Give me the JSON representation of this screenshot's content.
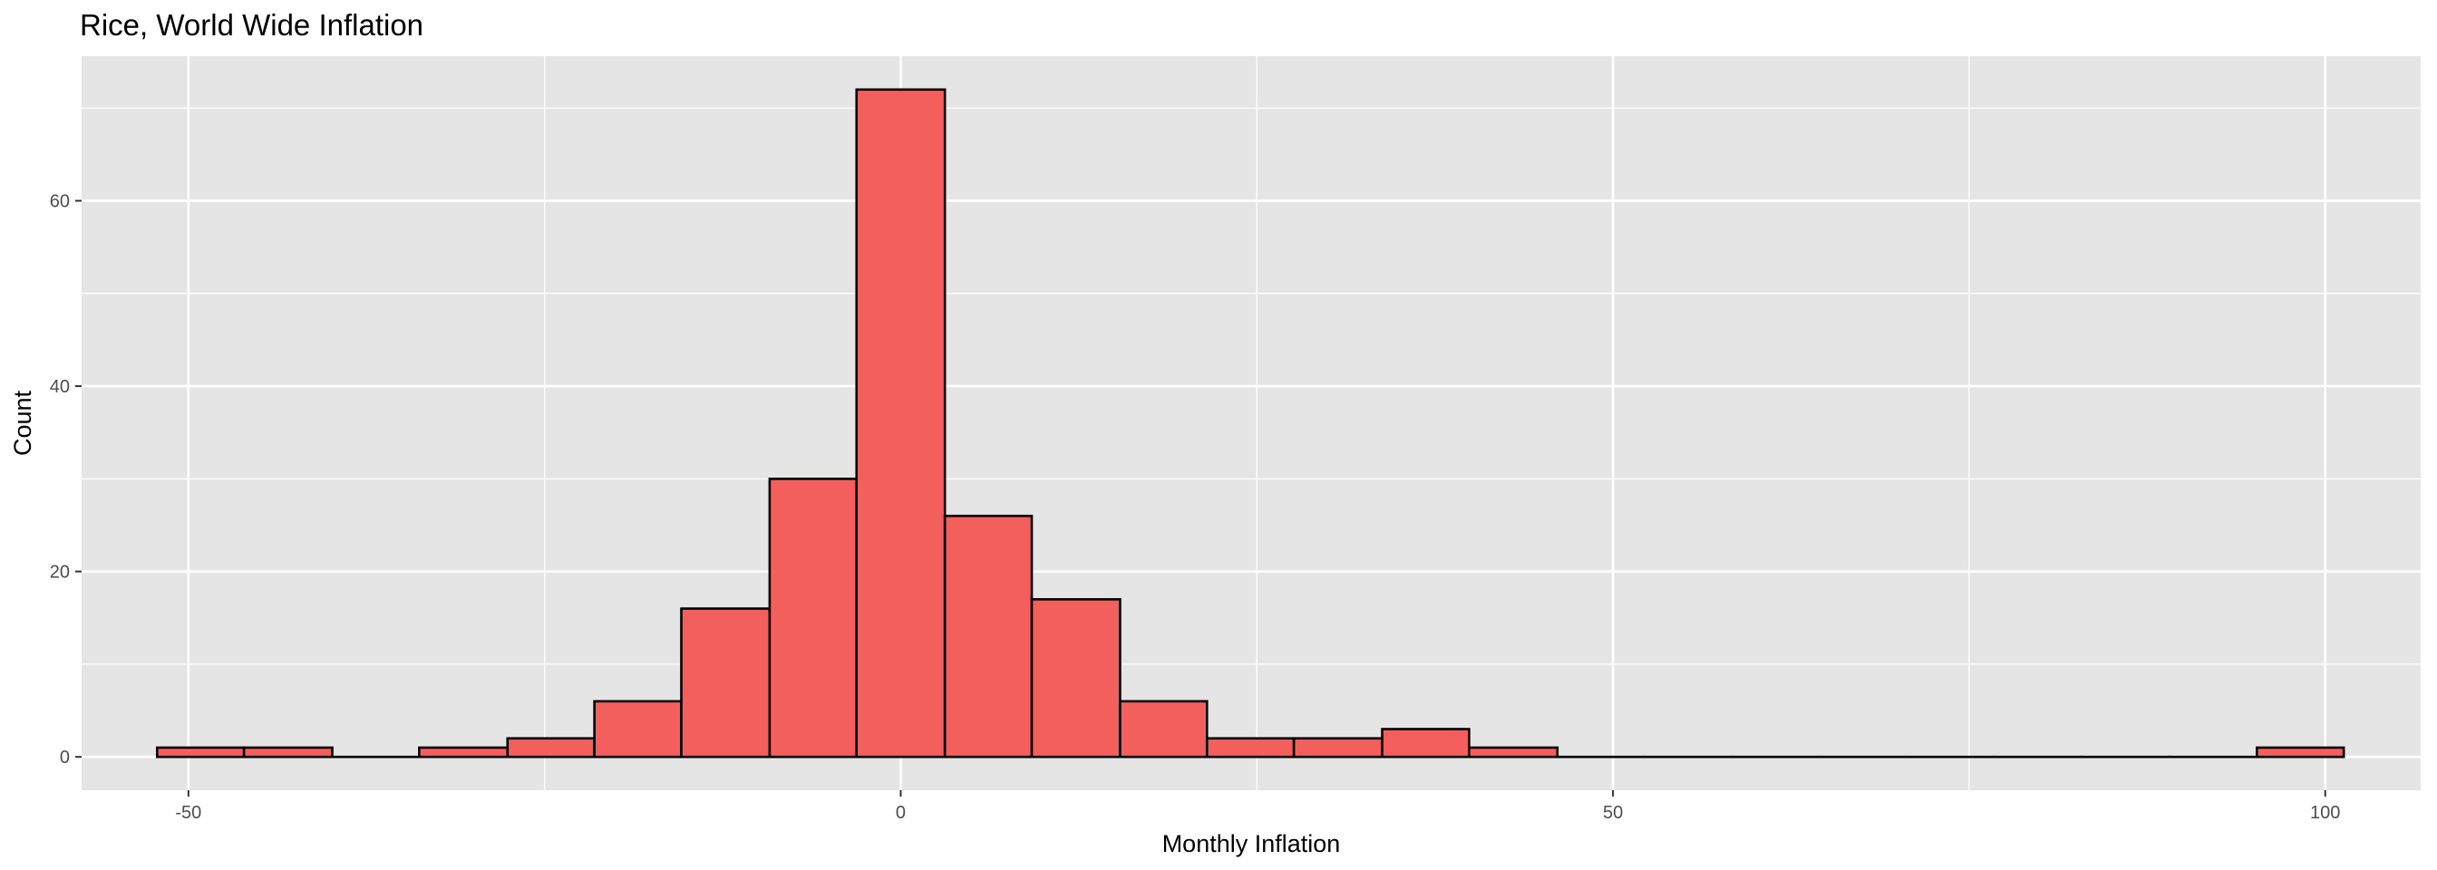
{
  "chart_data": {
    "type": "bar",
    "title": "Rice, World Wide Inflation",
    "xlabel": "Monthly Inflation",
    "ylabel": "Count",
    "bin_width": 6.14,
    "bins": [
      {
        "x0": -52.2,
        "x1": -46.1,
        "count": 1
      },
      {
        "x0": -46.1,
        "x1": -39.9,
        "count": 1
      },
      {
        "x0": -39.9,
        "x1": -33.8,
        "count": 0
      },
      {
        "x0": -33.8,
        "x1": -27.6,
        "count": 1
      },
      {
        "x0": -27.6,
        "x1": -21.5,
        "count": 2
      },
      {
        "x0": -21.5,
        "x1": -15.4,
        "count": 6
      },
      {
        "x0": -15.4,
        "x1": -9.2,
        "count": 16
      },
      {
        "x0": -9.2,
        "x1": -3.1,
        "count": 30
      },
      {
        "x0": -3.1,
        "x1": 3.1,
        "count": 72
      },
      {
        "x0": 3.1,
        "x1": 9.2,
        "count": 26
      },
      {
        "x0": 9.2,
        "x1": 15.4,
        "count": 17
      },
      {
        "x0": 15.4,
        "x1": 21.5,
        "count": 6
      },
      {
        "x0": 21.5,
        "x1": 27.6,
        "count": 2
      },
      {
        "x0": 27.6,
        "x1": 33.8,
        "count": 2
      },
      {
        "x0": 33.8,
        "x1": 39.9,
        "count": 3
      },
      {
        "x0": 39.9,
        "x1": 46.1,
        "count": 1
      },
      {
        "x0": 46.1,
        "x1": 52.2,
        "count": 0
      },
      {
        "x0": 52.2,
        "x1": 58.4,
        "count": 0
      },
      {
        "x0": 58.4,
        "x1": 64.5,
        "count": 0
      },
      {
        "x0": 64.5,
        "x1": 70.6,
        "count": 0
      },
      {
        "x0": 70.6,
        "x1": 76.8,
        "count": 0
      },
      {
        "x0": 76.8,
        "x1": 82.9,
        "count": 0
      },
      {
        "x0": 82.9,
        "x1": 89.1,
        "count": 0
      },
      {
        "x0": 89.1,
        "x1": 95.2,
        "count": 0
      },
      {
        "x0": 95.2,
        "x1": 101.3,
        "count": 1
      }
    ],
    "xlim": [
      -57.5,
      106.7
    ],
    "ylim": [
      -3.6,
      75.6
    ],
    "x_ticks": [
      -50,
      0,
      50,
      100
    ],
    "x_tick_labels": [
      "-50",
      "0",
      "50",
      "100"
    ],
    "x_minor_ticks": [
      -25,
      25,
      75
    ],
    "y_ticks": [
      0,
      20,
      40,
      60
    ],
    "y_tick_labels": [
      "0",
      "20",
      "40",
      "60"
    ],
    "y_minor_ticks": [
      10,
      30,
      50,
      70
    ],
    "grid": true,
    "legend": "none",
    "colors": {
      "bar_fill": "#f25f5c",
      "bar_stroke": "#000000",
      "panel_background": "#e5e5e5",
      "grid_line": "#ffffff"
    }
  }
}
